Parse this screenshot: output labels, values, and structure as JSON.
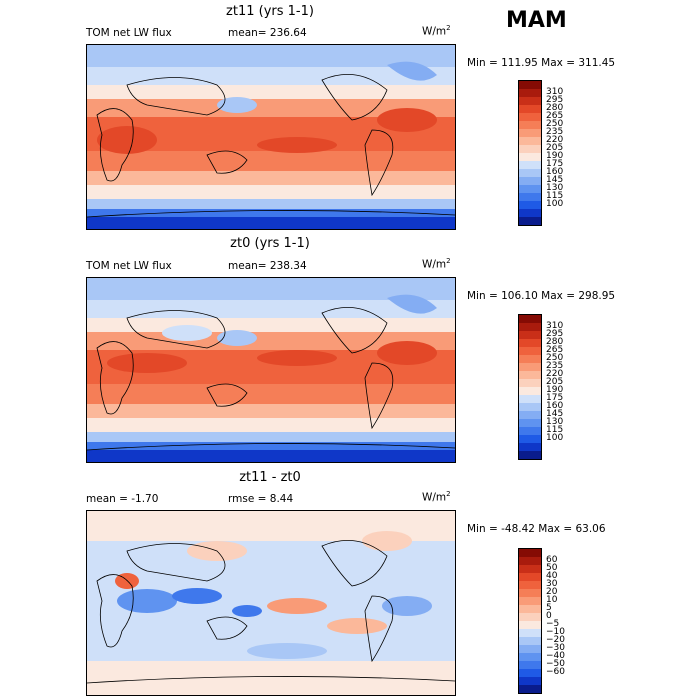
{
  "season": "MAM",
  "colors": {
    "abs_scale": [
      "#0a1c8c",
      "#0f37c8",
      "#1f5ae6",
      "#3f78ec",
      "#5f93f0",
      "#84adf3",
      "#a9c7f6",
      "#cfe0f9",
      "#fbe9df",
      "#fbd1bd",
      "#fbb89a",
      "#f99b77",
      "#f57e57",
      "#ef623d",
      "#e34828",
      "#c92f18",
      "#a91b0d",
      "#850b04"
    ],
    "diff_scale": [
      "#0a1c8c",
      "#0f37c8",
      "#1f5ae6",
      "#3f78ec",
      "#5f93f0",
      "#84adf3",
      "#a9c7f6",
      "#cfe0f9",
      "#fbe9df",
      "#fbd1bd",
      "#fbb89a",
      "#f99b77",
      "#f57e57",
      "#ef623d",
      "#e34828",
      "#c92f18",
      "#a91b0d",
      "#850b04"
    ]
  },
  "panels": [
    {
      "title": "zt11 (yrs 1-1)",
      "left_label": "TOM net LW flux",
      "stat_label": "mean= 236.64",
      "units": "W/m",
      "units_sup": "2",
      "minmax": "Min = 111.95 Max = 311.45",
      "scale": "abs",
      "cbar_labels": [
        "310",
        "295",
        "280",
        "265",
        "250",
        "235",
        "220",
        "205",
        "190",
        "175",
        "160",
        "145",
        "130",
        "115",
        "100"
      ]
    },
    {
      "title": "zt0 (yrs 1-1)",
      "left_label": "TOM net LW flux",
      "stat_label": "mean= 238.34",
      "units": "W/m",
      "units_sup": "2",
      "minmax": "Min = 106.10 Max = 298.95",
      "scale": "abs",
      "cbar_labels": [
        "310",
        "295",
        "280",
        "265",
        "250",
        "235",
        "220",
        "205",
        "190",
        "175",
        "160",
        "145",
        "130",
        "115",
        "100"
      ]
    },
    {
      "title": "zt11 - zt0",
      "left_label": "mean =   -1.70",
      "stat_label": "rmse =   8.44",
      "units": "W/m",
      "units_sup": "2",
      "minmax": "Min = -48.42 Max =  63.06",
      "scale": "diff",
      "cbar_labels": [
        "60",
        "50",
        "40",
        "30",
        "20",
        "10",
        "5",
        "0",
        "−5",
        "−10",
        "−20",
        "−30",
        "−40",
        "−50",
        "−60"
      ]
    }
  ]
}
